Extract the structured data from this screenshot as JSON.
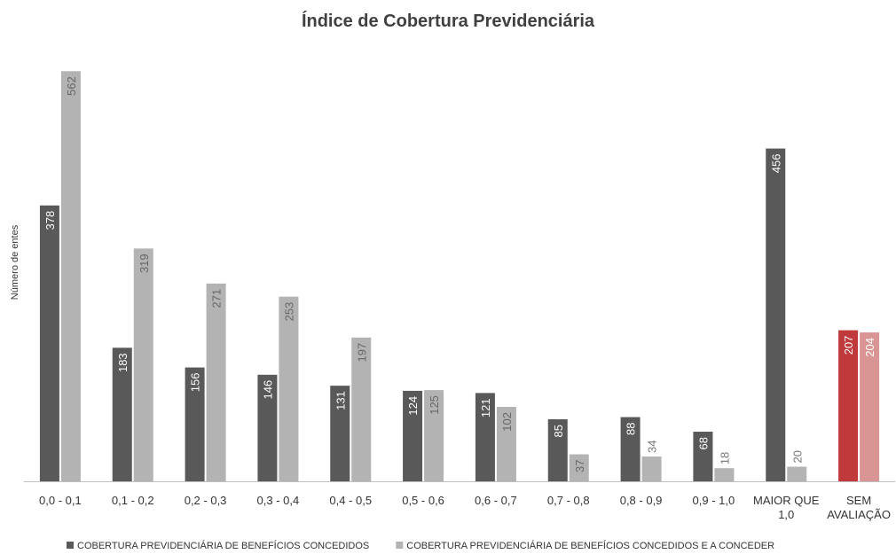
{
  "chart_data": {
    "type": "bar",
    "title": "Índice de Cobertura Previdenciária",
    "y_label": "Número de entes",
    "categories": [
      "0,0 - 0,1",
      "0,1 - 0,2",
      "0,2 - 0,3",
      "0,3 - 0,4",
      "0,4 - 0,5",
      "0,5 - 0,6",
      "0,6 - 0,7",
      "0,7 - 0,8",
      "0,8 - 0,9",
      "0,9 - 1,0",
      "MAIOR QUE 1,0",
      "SEM AVALIAÇÃO"
    ],
    "series": [
      {
        "name": "COBERTURA PREVIDENCIÁRIA DE BENEFÍCIOS CONCEDIDOS",
        "color": "#595959",
        "colors": [
          "#595959",
          "#595959",
          "#595959",
          "#595959",
          "#595959",
          "#595959",
          "#595959",
          "#595959",
          "#595959",
          "#595959",
          "#595959",
          "#c0393b"
        ],
        "values": [
          378,
          183,
          156,
          146,
          131,
          124,
          121,
          85,
          88,
          68,
          456,
          207
        ]
      },
      {
        "name": "COBERTURA PREVIDENCIÁRIA DE BENEFÍCIOS CONCEDIDOS E A CONCEDER",
        "color": "#b3b3b3",
        "colors": [
          "#b3b3b3",
          "#b3b3b3",
          "#b3b3b3",
          "#b3b3b3",
          "#b3b3b3",
          "#b3b3b3",
          "#b3b3b3",
          "#b3b3b3",
          "#b3b3b3",
          "#b3b3b3",
          "#b3b3b3",
          "#d99594"
        ],
        "values": [
          562,
          319,
          271,
          253,
          197,
          125,
          102,
          37,
          34,
          18,
          20,
          204
        ]
      }
    ],
    "ylim": [
      0,
      600
    ],
    "grid": false,
    "legend": "bottom"
  }
}
